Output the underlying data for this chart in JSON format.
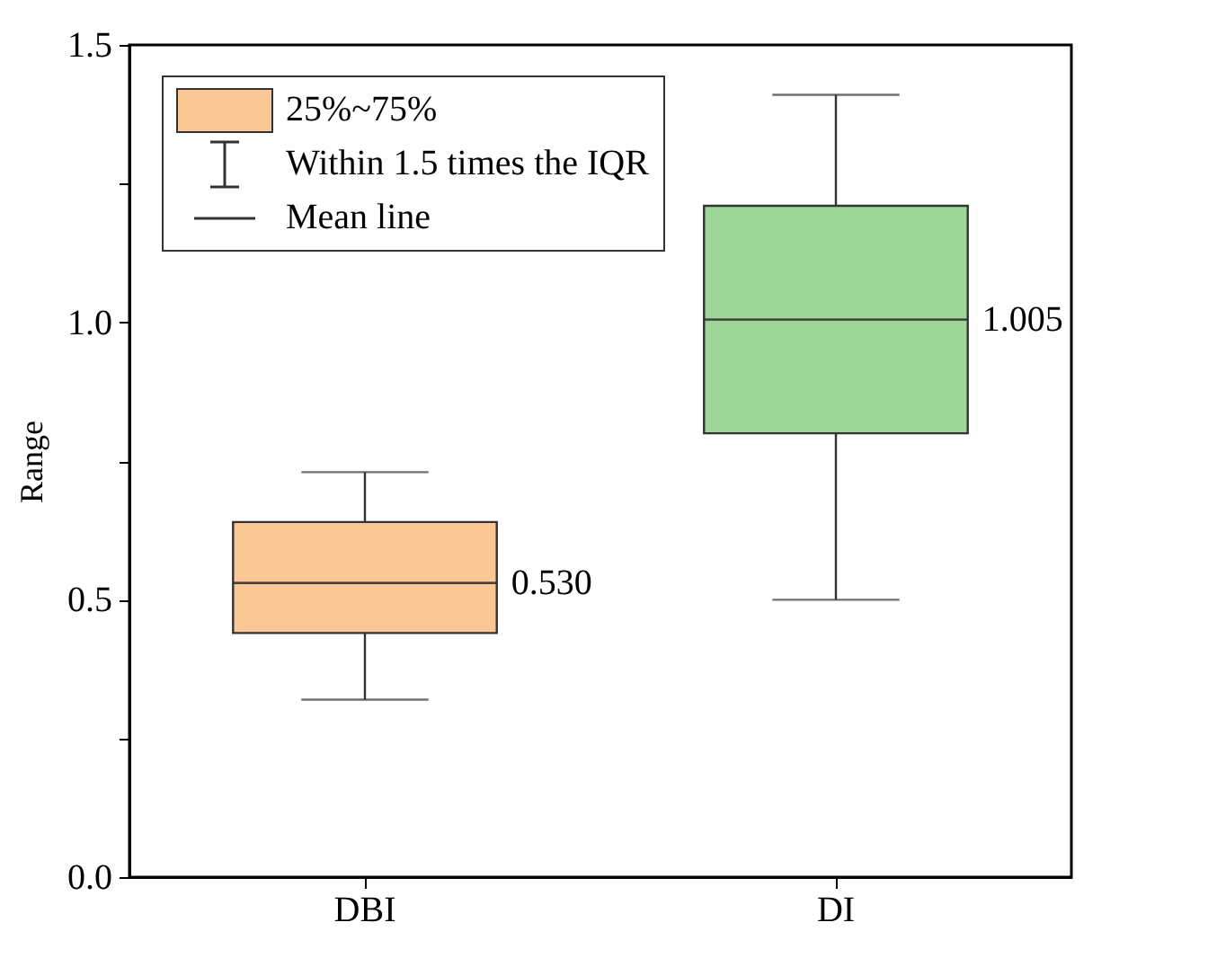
{
  "chart_data": {
    "type": "box",
    "ylabel": "Range",
    "categories": [
      "DBI",
      "DI"
    ],
    "boxes": [
      {
        "low": 0.32,
        "q1": 0.44,
        "median": 0.53,
        "q3": 0.64,
        "high": 0.73,
        "mean": 0.53
      },
      {
        "low": 0.5,
        "q1": 0.8,
        "median": 1.005,
        "q3": 1.21,
        "high": 1.41,
        "mean": 1.005
      }
    ],
    "colors": [
      "#fac795",
      "#9ed69a"
    ],
    "ylim": [
      0,
      1.5
    ],
    "yticks": [
      {
        "value": 0,
        "label": "0.0"
      },
      {
        "value": 0.25,
        "label": null
      },
      {
        "value": 0.5,
        "label": "0.5"
      },
      {
        "value": 0.75,
        "label": null
      },
      {
        "value": 1,
        "label": "1.0"
      },
      {
        "value": 1.25,
        "label": null
      },
      {
        "value": 1.5,
        "label": "1.5"
      }
    ],
    "grid": false,
    "annotations": [
      "25%~75%",
      "Within 1.5 times the IQR",
      "Mean line",
      "0.530",
      "1.005"
    ]
  }
}
